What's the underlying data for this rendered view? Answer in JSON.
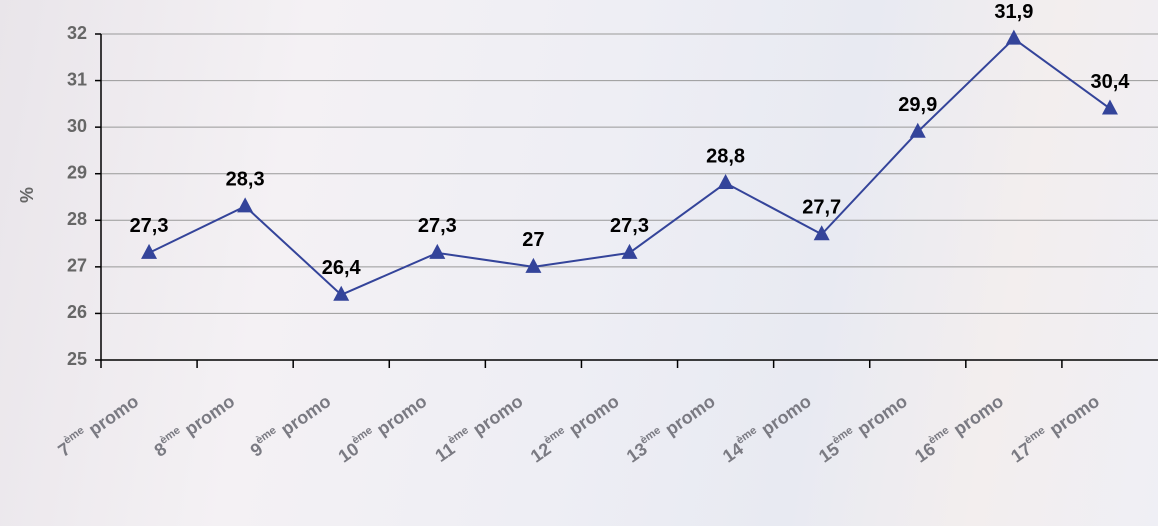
{
  "chart_data": {
    "type": "line",
    "y_label": "%",
    "categories": [
      "7ème promo",
      "8ème promo",
      "9ème promo",
      "10ème promo",
      "11ème promo",
      "12ème promo",
      "13ème promo",
      "14ème promo",
      "15ème promo",
      "16ème promo",
      "17ème promo"
    ],
    "series": [
      {
        "color": "#34449a",
        "values": [
          27.3,
          28.3,
          26.4,
          27.3,
          27,
          27.3,
          28.8,
          27.7,
          29.9,
          31.9,
          30.4
        ],
        "value_labels": [
          "27,3",
          "28,3",
          "26,4",
          "27,3",
          "27",
          "27,3",
          "28,8",
          "27,7",
          "29,9",
          "31,9",
          "30,4"
        ]
      }
    ],
    "ylim": [
      25,
      32
    ],
    "yticks": [
      25,
      26,
      27,
      28,
      29,
      30,
      31,
      32
    ],
    "grid": true
  }
}
